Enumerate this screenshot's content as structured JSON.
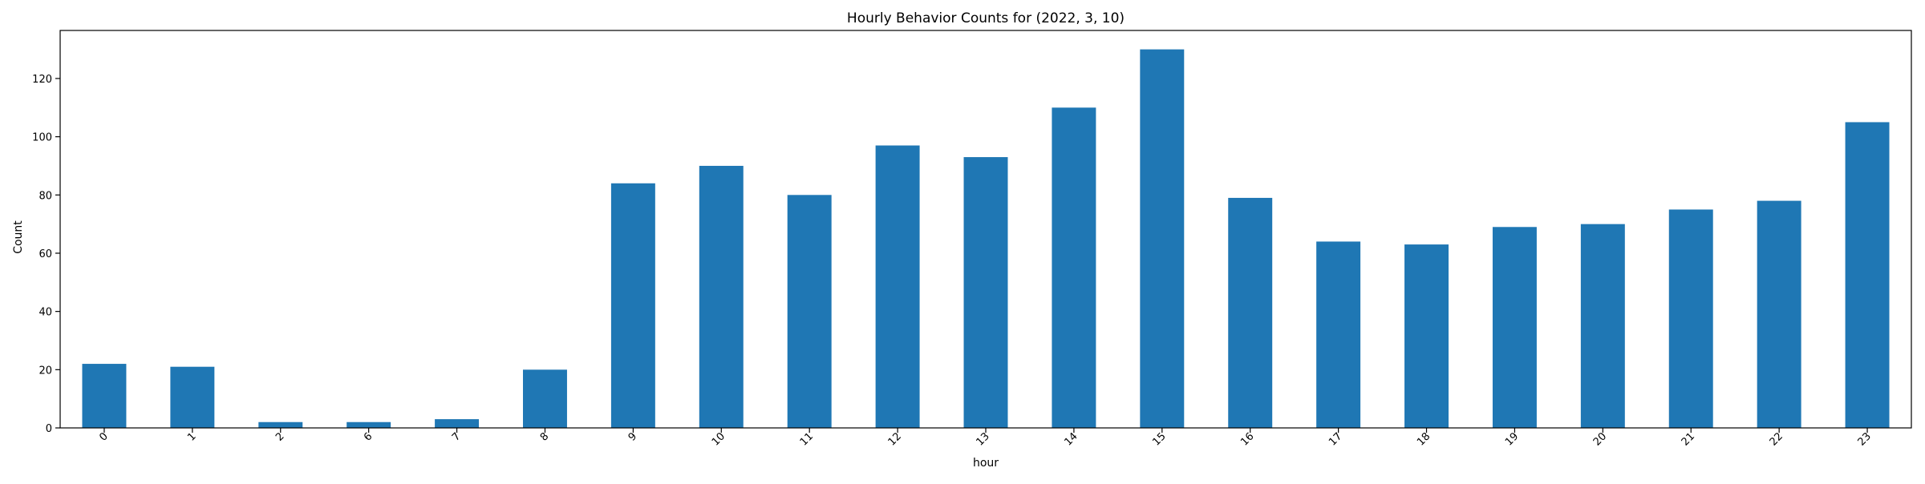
{
  "chart_data": {
    "type": "bar",
    "title": "Hourly Behavior Counts for (2022, 3, 10)",
    "xlabel": "hour",
    "ylabel": "Count",
    "categories": [
      "0",
      "1",
      "2",
      "6",
      "7",
      "8",
      "9",
      "10",
      "11",
      "12",
      "13",
      "14",
      "15",
      "16",
      "17",
      "18",
      "19",
      "20",
      "21",
      "22",
      "23"
    ],
    "values": [
      22,
      21,
      2,
      2,
      3,
      20,
      84,
      90,
      80,
      97,
      93,
      110,
      130,
      79,
      64,
      63,
      69,
      70,
      75,
      78,
      105
    ],
    "ylim": [
      0,
      136.5
    ],
    "yticks": [
      "0",
      "20",
      "40",
      "60",
      "80",
      "100",
      "120"
    ],
    "xtick_rotation": 45,
    "grid": false,
    "bar_color": "#1f77b4"
  }
}
